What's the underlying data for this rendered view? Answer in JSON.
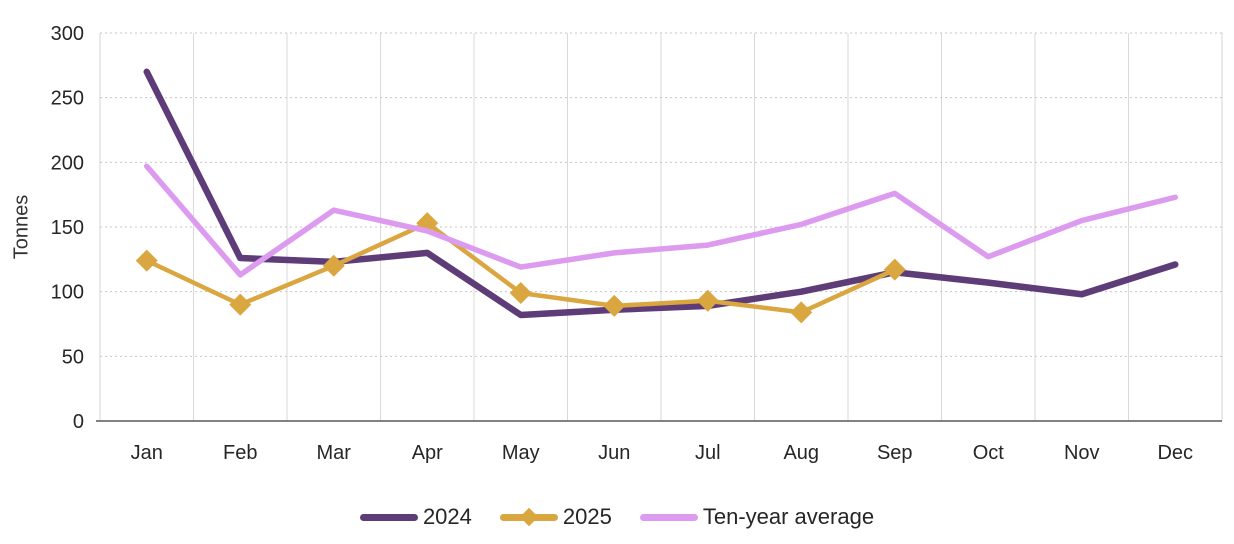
{
  "chart_data": {
    "type": "line",
    "title": "",
    "ylabel": "Tonnes",
    "xlabel": "",
    "categories": [
      "Jan",
      "Feb",
      "Mar",
      "Apr",
      "May",
      "Jun",
      "Jul",
      "Aug",
      "Sep",
      "Oct",
      "Nov",
      "Dec"
    ],
    "y_ticks": [
      0,
      50,
      100,
      150,
      200,
      250,
      300
    ],
    "ylim": [
      0,
      300
    ],
    "grid": true,
    "legend_position": "bottom",
    "series": [
      {
        "name": "2024",
        "color": "#5E3C78",
        "marker": "none",
        "values": [
          270,
          126,
          123,
          130,
          82,
          86,
          89,
          100,
          115,
          107,
          98,
          121
        ]
      },
      {
        "name": "2025",
        "color": "#D9A640",
        "marker": "diamond",
        "values": [
          124,
          90,
          120,
          153,
          99,
          89,
          93,
          84,
          117
        ]
      },
      {
        "name": "Ten-year average",
        "color": "#DD9BF0",
        "marker": "none",
        "values": [
          197,
          113,
          163,
          147,
          119,
          130,
          136,
          152,
          176,
          127,
          155,
          173
        ]
      }
    ],
    "colors": {
      "axis_line": "#595959",
      "grid_vertical": "#d9d9d9",
      "grid_horizontal_dashed": "#c6c6c6",
      "plot_border": "#d4d4d4",
      "tick_text": "#262626"
    }
  }
}
